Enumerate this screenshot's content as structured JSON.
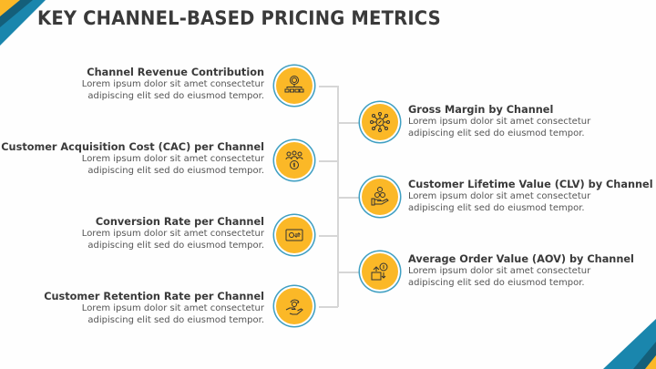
{
  "title": "KEY CHANNEL-BASED PRICING METRICS",
  "colors": {
    "accent": "#fbb827",
    "ring": "#3f9fc2",
    "blue": "#1a86ad",
    "dark_blue": "#145f7a"
  },
  "left_items": [
    {
      "heading": "Channel Revenue Contribution",
      "line1": "Lorem ipsum dolor sit amet consectetur",
      "line2": "adipiscing elit sed do eiusmod tempor.",
      "icon": "revenue-hierarchy-icon"
    },
    {
      "heading": "Customer Acquisition Cost (CAC) per Channel",
      "line1": "Lorem ipsum dolor sit amet consectetur",
      "line2": "adipiscing elit sed do eiusmod tempor.",
      "icon": "customers-dollar-icon"
    },
    {
      "heading": "Conversion Rate per Channel",
      "line1": "Lorem ipsum dolor sit amet consectetur",
      "line2": "adipiscing elit sed do eiusmod tempor.",
      "icon": "money-exchange-icon"
    },
    {
      "heading": "Customer Retention Rate per Channel",
      "line1": "Lorem ipsum dolor sit amet consectetur",
      "line2": "adipiscing elit sed do eiusmod tempor.",
      "icon": "hand-retention-icon"
    }
  ],
  "right_items": [
    {
      "heading": "Gross Margin by Channel",
      "line1": "Lorem ipsum dolor sit amet consectetur",
      "line2": "adipiscing elit sed do eiusmod tempor.",
      "icon": "network-percent-icon"
    },
    {
      "heading": "Customer Lifetime Value (CLV) by Channel",
      "line1": "Lorem ipsum dolor sit amet consectetur",
      "line2": "adipiscing elit sed do eiusmod tempor.",
      "icon": "hand-coins-icon"
    },
    {
      "heading": "Average Order Value (AOV) by Channel",
      "line1": "Lorem ipsum dolor sit amet consectetur",
      "line2": "adipiscing elit sed do eiusmod tempor.",
      "icon": "box-dollar-icon"
    }
  ]
}
